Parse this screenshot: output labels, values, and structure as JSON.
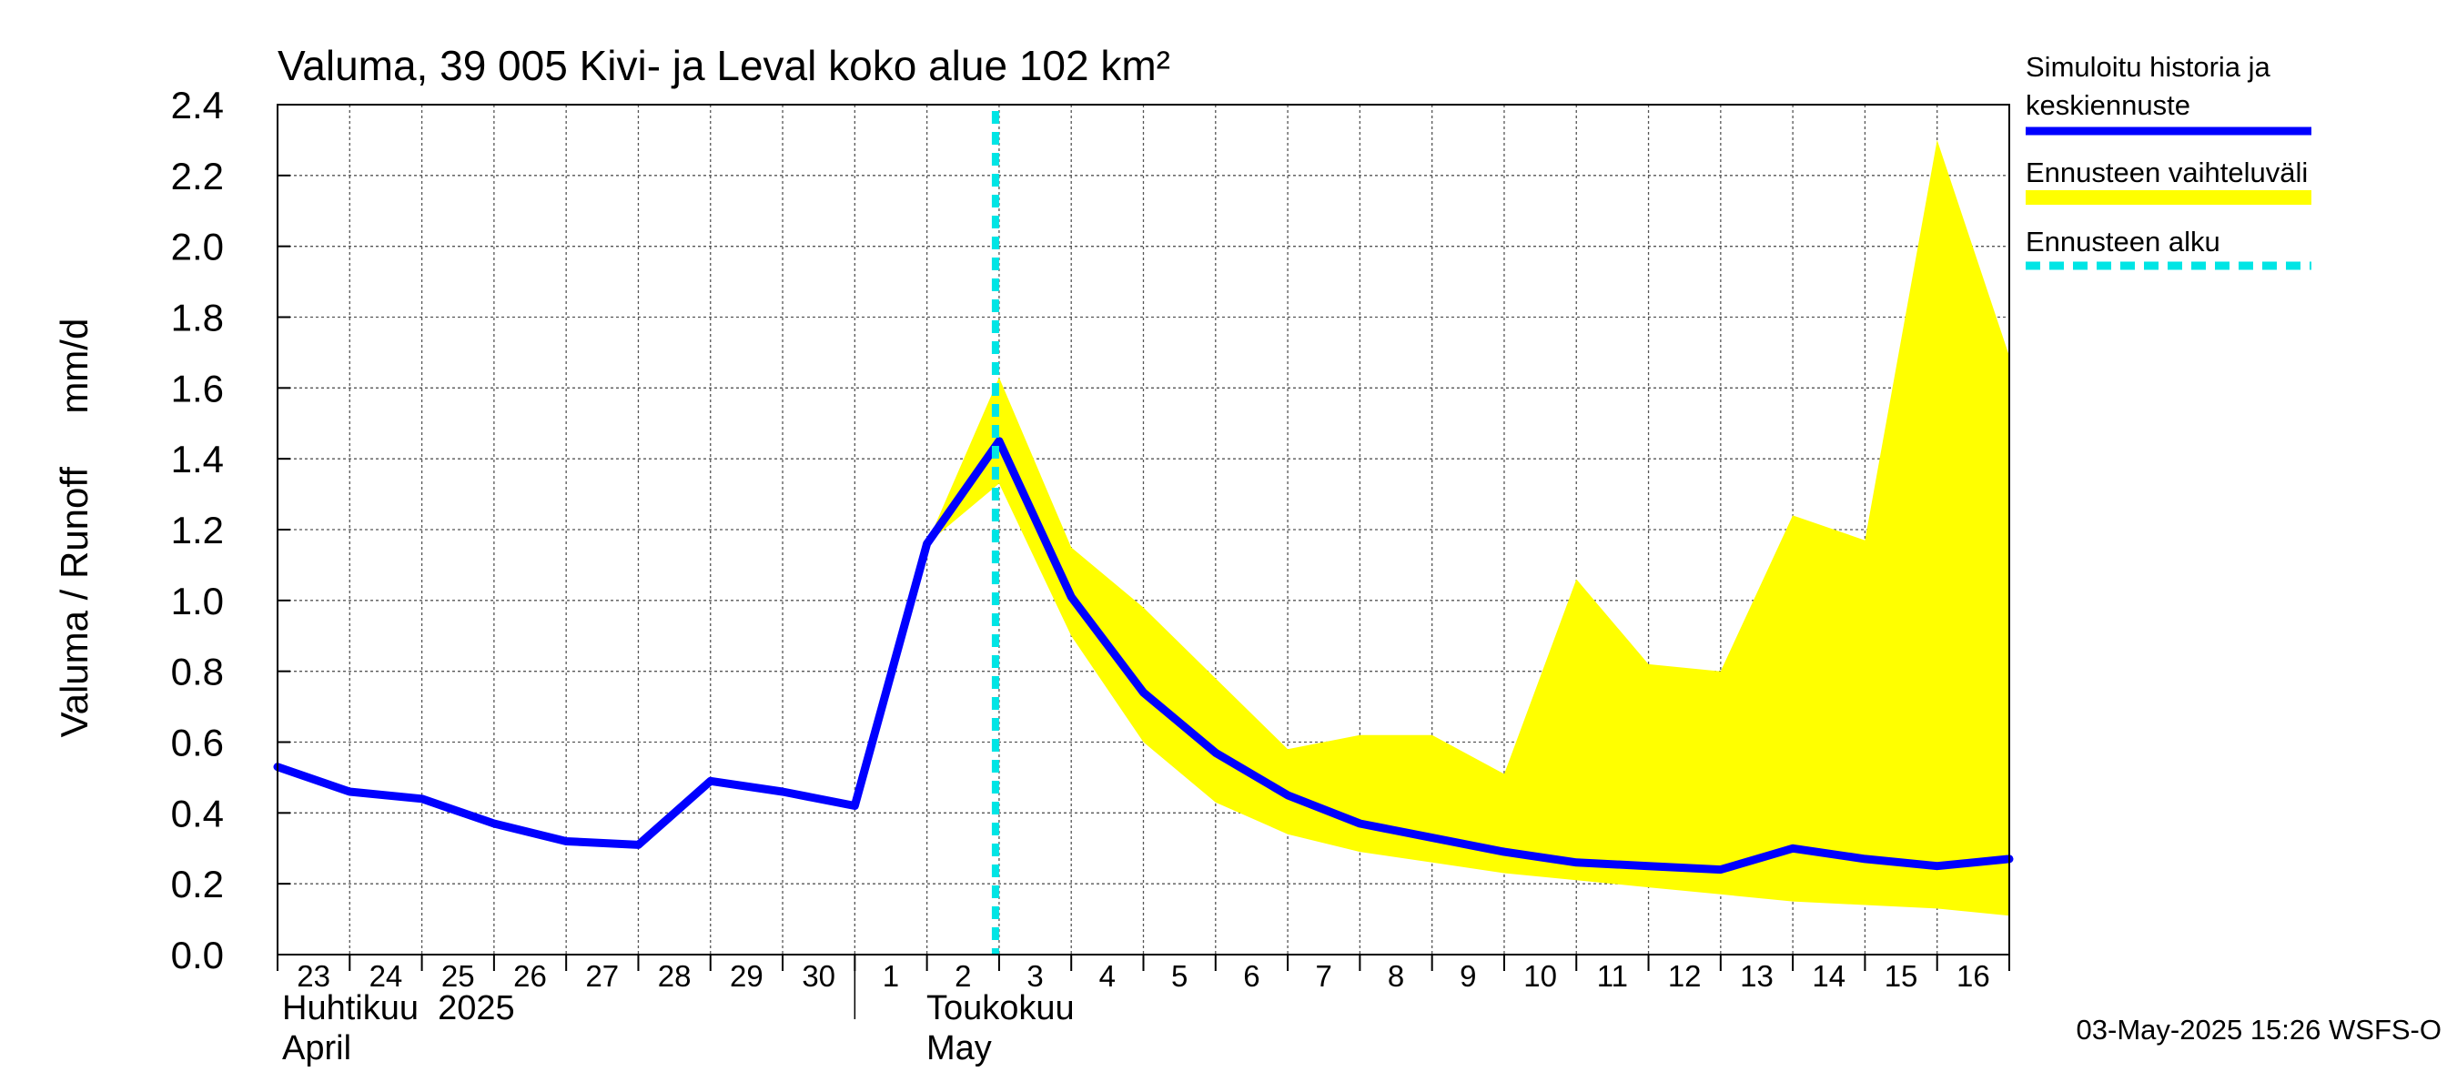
{
  "chart_data": {
    "type": "line",
    "title": "Valuma, 39 005 Kivi- ja Leval koko alue 102 km²",
    "ylabel": "Valuma / Runoff     mm/d",
    "ylim": [
      0,
      2.4
    ],
    "yticks": [
      "0.0",
      "0.2",
      "0.4",
      "0.6",
      "0.8",
      "1.0",
      "1.2",
      "1.4",
      "1.6",
      "1.8",
      "2.0",
      "2.2",
      "2.4"
    ],
    "grid": true,
    "x_day_labels": [
      "23",
      "24",
      "25",
      "26",
      "27",
      "28",
      "29",
      "30",
      "1",
      "2",
      "3",
      "4",
      "5",
      "6",
      "7",
      "8",
      "9",
      "10",
      "11",
      "12",
      "13",
      "14",
      "15",
      "16"
    ],
    "month_labels": [
      {
        "line1": "Huhtikuu  2025",
        "line2": "April"
      },
      {
        "line1": "Toukokuu",
        "line2": "May"
      }
    ],
    "x_dates": [
      "2025-04-23",
      "2025-04-24",
      "2025-04-25",
      "2025-04-26",
      "2025-04-27",
      "2025-04-28",
      "2025-04-29",
      "2025-04-30",
      "2025-05-01",
      "2025-05-02",
      "2025-05-03",
      "2025-05-04",
      "2025-05-05",
      "2025-05-06",
      "2025-05-07",
      "2025-05-08",
      "2025-05-09",
      "2025-05-10",
      "2025-05-11",
      "2025-05-12",
      "2025-05-13",
      "2025-05-14",
      "2025-05-15",
      "2025-05-16",
      "2025-05-17"
    ],
    "series": [
      {
        "name": "Simuloitu historia ja keskiennuste",
        "color": "#0000ff",
        "values": [
          0.53,
          0.46,
          0.44,
          0.37,
          0.32,
          0.31,
          0.49,
          0.46,
          0.42,
          1.16,
          1.45,
          1.01,
          0.74,
          0.57,
          0.45,
          0.37,
          0.33,
          0.29,
          0.26,
          0.25,
          0.24,
          0.3,
          0.27,
          0.25,
          0.27
        ]
      }
    ],
    "band": {
      "name": "Ennusteen vaihteluväli",
      "color": "#ffff00",
      "x_dates": [
        "2025-05-02",
        "2025-05-03",
        "2025-05-04",
        "2025-05-05",
        "2025-05-06",
        "2025-05-07",
        "2025-05-08",
        "2025-05-09",
        "2025-05-10",
        "2025-05-11",
        "2025-05-12",
        "2025-05-13",
        "2025-05-14",
        "2025-05-15",
        "2025-05-16",
        "2025-05-17"
      ],
      "upper": [
        1.16,
        1.63,
        1.15,
        0.98,
        0.78,
        0.58,
        0.62,
        0.62,
        0.51,
        1.06,
        0.82,
        0.8,
        1.24,
        1.17,
        2.3,
        1.69
      ],
      "lower": [
        1.16,
        1.33,
        0.9,
        0.6,
        0.43,
        0.34,
        0.29,
        0.26,
        0.23,
        0.21,
        0.19,
        0.17,
        0.15,
        0.14,
        0.13,
        0.11
      ]
    },
    "forecast_start": {
      "name": "Ennusteen alku",
      "date": "2025-05-03",
      "color": "#00e5e5"
    },
    "legend": [
      {
        "line1": "Simuloitu historia ja",
        "line2": "keskiennuste",
        "style": "line",
        "color": "#0000ff"
      },
      {
        "line1": "Ennusteen vaihteluväli",
        "line2": "",
        "style": "band",
        "color": "#ffff00"
      },
      {
        "line1": "Ennusteen alku",
        "line2": "",
        "style": "dash",
        "color": "#00e5e5"
      }
    ],
    "legend_position": "right"
  },
  "footer": {
    "timestamp": "03-May-2025 15:26 WSFS-O"
  }
}
